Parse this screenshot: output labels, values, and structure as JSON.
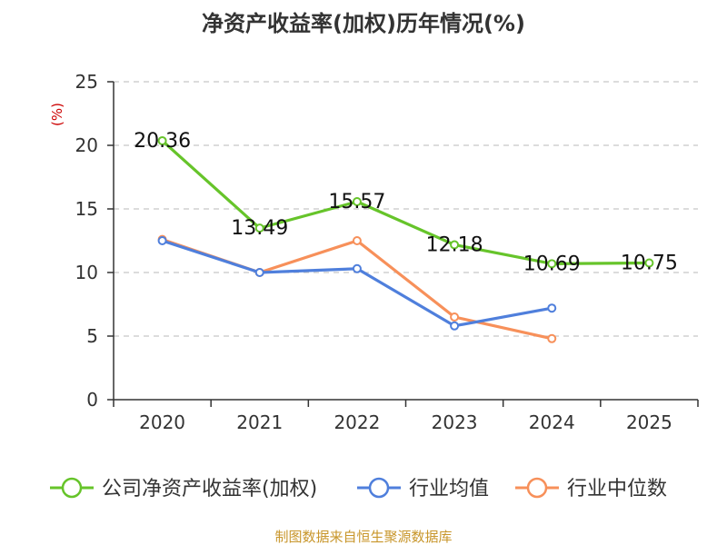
{
  "chart_data": {
    "type": "line",
    "title": "净资产收益率(加权)历年情况(%)",
    "ylabel": "(%)",
    "xlabel": "",
    "categories": [
      "2020",
      "2021",
      "2022",
      "2023",
      "2024",
      "2025"
    ],
    "ylim": [
      0,
      25
    ],
    "yticks": [
      0,
      5,
      10,
      15,
      20,
      25
    ],
    "grid": true,
    "legend_position": "bottom",
    "series": [
      {
        "name": "公司净资产收益率(加权)",
        "color": "#66c42a",
        "values": [
          20.36,
          13.49,
          15.57,
          12.18,
          10.69,
          10.75
        ],
        "labels": [
          "20.36",
          "13.49",
          "15.57",
          "12.18",
          "10.69",
          "10.75"
        ]
      },
      {
        "name": "行业均值",
        "color": "#4f7fdc",
        "values": [
          12.5,
          10.0,
          10.3,
          5.8,
          7.2,
          null
        ]
      },
      {
        "name": "行业中位数",
        "color": "#f7905a",
        "values": [
          12.6,
          10.0,
          12.5,
          6.5,
          4.8,
          null
        ]
      }
    ],
    "source": "制图数据来自恒生聚源数据库"
  }
}
